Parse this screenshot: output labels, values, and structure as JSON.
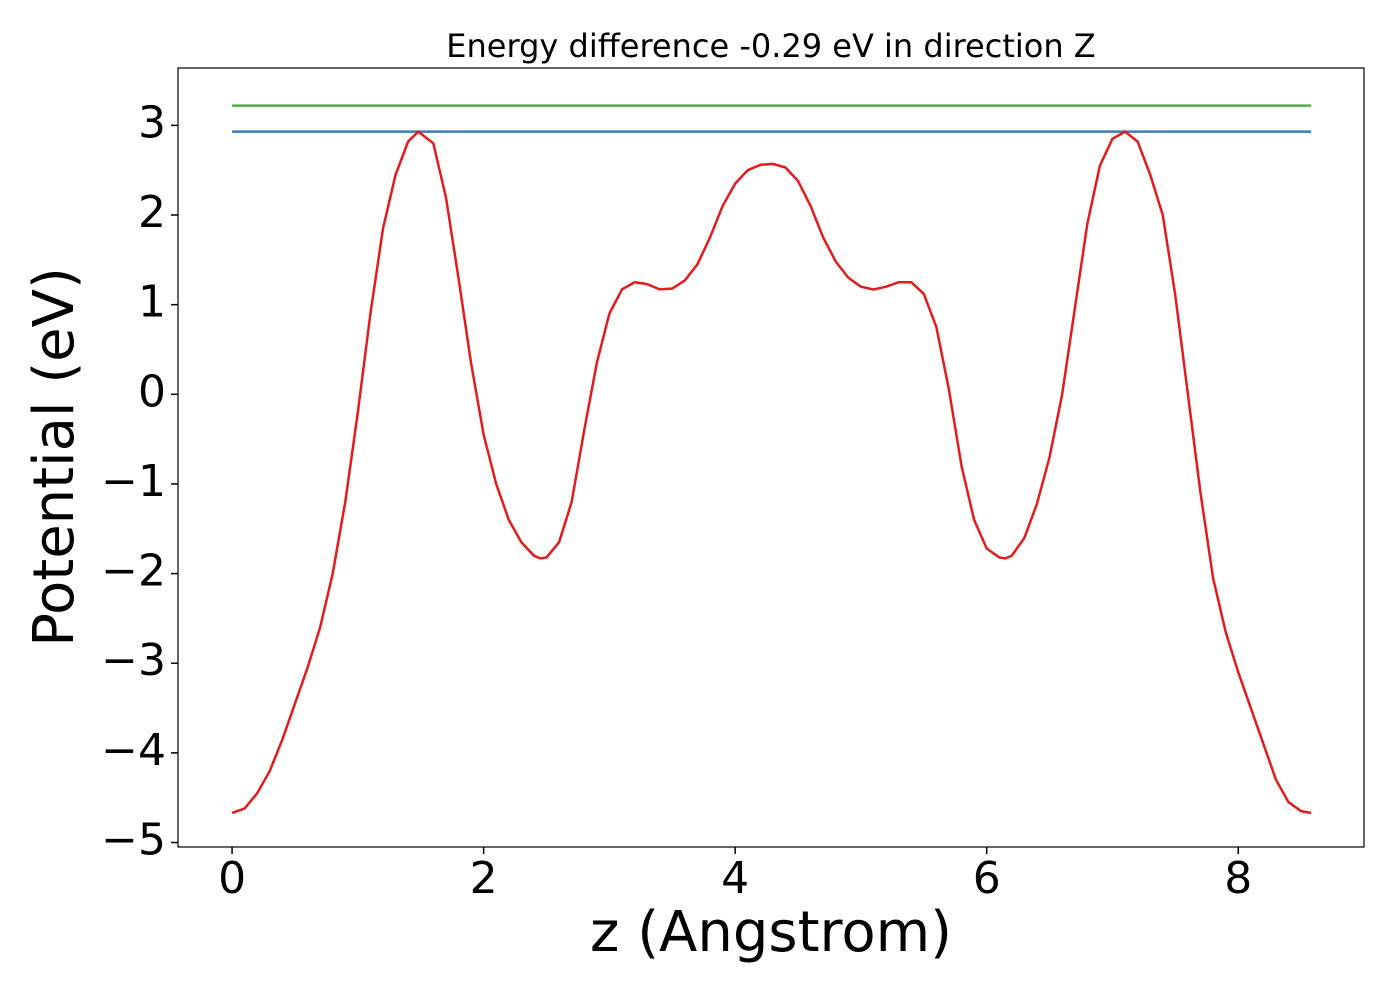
{
  "chart_data": {
    "type": "line",
    "title": "Energy difference -0.29 eV in direction Z",
    "x_label": "z (Angstrom)",
    "y_label": "Potential (eV)",
    "xlim": [
      -0.43,
      9.0
    ],
    "ylim": [
      -5.05,
      3.64
    ],
    "xticks": [
      0,
      2,
      4,
      6,
      8
    ],
    "yticks": [
      {
        "value": -5,
        "label": "−5"
      },
      {
        "value": -4,
        "label": "−4"
      },
      {
        "value": -3,
        "label": "−3"
      },
      {
        "value": -2,
        "label": "−2"
      },
      {
        "value": -1,
        "label": "−1"
      },
      0,
      1,
      2,
      3
    ],
    "grid": false,
    "series": [
      {
        "color": "#4daf4a",
        "x": [
          0,
          8.58
        ],
        "values": [
          3.22,
          3.22
        ]
      },
      {
        "color": "#377eb8",
        "x": [
          0,
          8.58
        ],
        "values": [
          2.93,
          2.93
        ]
      },
      {
        "color": "#e41a1c",
        "x": [
          0,
          0.1,
          0.2,
          0.3,
          0.4,
          0.5,
          0.6,
          0.7,
          0.8,
          0.9,
          1.0,
          1.1,
          1.2,
          1.3,
          1.4,
          1.48,
          1.6,
          1.7,
          1.8,
          1.9,
          2.0,
          2.1,
          2.2,
          2.3,
          2.4,
          2.45,
          2.5,
          2.6,
          2.7,
          2.8,
          2.9,
          3.0,
          3.1,
          3.2,
          3.3,
          3.4,
          3.5,
          3.6,
          3.7,
          3.8,
          3.9,
          4.0,
          4.1,
          4.2,
          4.3,
          4.4,
          4.5,
          4.6,
          4.7,
          4.8,
          4.9,
          5.0,
          5.1,
          5.2,
          5.3,
          5.4,
          5.5,
          5.6,
          5.7,
          5.8,
          5.9,
          6.0,
          6.1,
          6.15,
          6.2,
          6.3,
          6.4,
          6.5,
          6.6,
          6.7,
          6.8,
          6.9,
          7.0,
          7.1,
          7.2,
          7.3,
          7.4,
          7.5,
          7.6,
          7.7,
          7.8,
          7.9,
          8.0,
          8.1,
          8.2,
          8.3,
          8.4,
          8.5,
          8.58
        ],
        "values": [
          -4.67,
          -4.62,
          -4.45,
          -4.2,
          -3.85,
          -3.45,
          -3.05,
          -2.6,
          -2.0,
          -1.2,
          -0.2,
          0.9,
          1.85,
          2.45,
          2.82,
          2.93,
          2.8,
          2.2,
          1.3,
          0.35,
          -0.45,
          -1.0,
          -1.4,
          -1.65,
          -1.8,
          -1.83,
          -1.82,
          -1.65,
          -1.2,
          -0.4,
          0.35,
          0.9,
          1.17,
          1.25,
          1.23,
          1.17,
          1.18,
          1.27,
          1.45,
          1.75,
          2.1,
          2.35,
          2.5,
          2.56,
          2.57,
          2.53,
          2.38,
          2.1,
          1.75,
          1.48,
          1.3,
          1.2,
          1.17,
          1.2,
          1.25,
          1.25,
          1.12,
          0.75,
          0.05,
          -0.8,
          -1.4,
          -1.72,
          -1.82,
          -1.83,
          -1.8,
          -1.6,
          -1.22,
          -0.7,
          0.0,
          0.95,
          1.9,
          2.55,
          2.85,
          2.93,
          2.82,
          2.45,
          2.0,
          1.1,
          0.0,
          -1.1,
          -2.05,
          -2.65,
          -3.1,
          -3.5,
          -3.9,
          -4.3,
          -4.55,
          -4.65,
          -4.67
        ]
      }
    ]
  }
}
